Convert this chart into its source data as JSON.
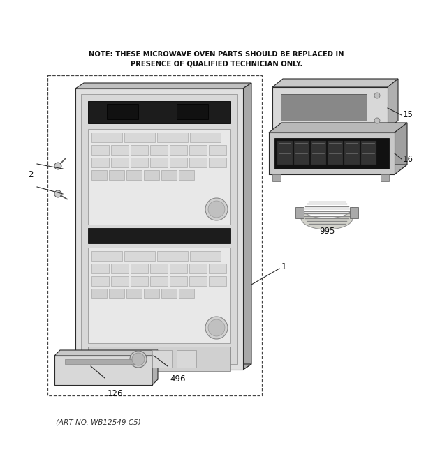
{
  "note_line1": "NOTE: THESE MICROWAVE OVEN PARTS SHOULD BE REPLACED IN",
  "note_line2": "PRESENCE OF QUALIFIED TECHNICIAN ONLY.",
  "art_no": "(ART NO. WB12549 C5)",
  "bg_color": "#ffffff",
  "fig_width": 6.2,
  "fig_height": 6.61,
  "dpi": 100,
  "line_color": "#2a2a2a",
  "fill_light": "#e8e8e8",
  "fill_mid": "#cccccc",
  "fill_dark": "#555555",
  "fill_black": "#1a1a1a",
  "fill_panel": "#d4d4d4",
  "fill_shadow": "#a0a0a0"
}
